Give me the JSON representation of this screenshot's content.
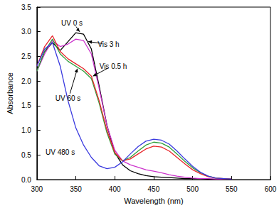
{
  "chart_data": {
    "type": "line",
    "x_label": "Wavelength (nm)",
    "y_label": "Absorbance",
    "x": [
      300,
      310,
      320,
      330,
      340,
      350,
      360,
      370,
      380,
      390,
      400,
      410,
      420,
      430,
      440,
      450,
      460,
      470,
      480,
      490,
      500,
      510,
      520,
      530,
      540,
      550
    ],
    "series": [
      {
        "name": "UV 0 s",
        "color": "#000000",
        "values": [
          2.2,
          2.6,
          2.78,
          2.62,
          2.8,
          2.98,
          2.95,
          2.65,
          1.9,
          1.1,
          0.55,
          0.3,
          0.18,
          0.12,
          0.08,
          0.06,
          0.05,
          0.04,
          0.03,
          0.02,
          0.02,
          0.02,
          0.01,
          0.01,
          0.01,
          0.01
        ],
        "annotation": {
          "x": 345,
          "y": 3.18,
          "arrow_to": [
            355,
            3.0
          ]
        }
      },
      {
        "name": "Vis 3 h",
        "color": "#cc33cc",
        "values": [
          2.2,
          2.55,
          2.82,
          2.7,
          2.75,
          2.85,
          2.82,
          2.55,
          1.85,
          1.1,
          0.6,
          0.38,
          0.3,
          0.25,
          0.2,
          0.17,
          0.14,
          0.1,
          0.07,
          0.05,
          0.03,
          0.02,
          0.02,
          0.01,
          0.01,
          0.01
        ],
        "annotation": {
          "x": 392,
          "y": 2.75,
          "arrow_to": [
            366,
            2.8
          ]
        }
      },
      {
        "name": "Vis 0.5 h",
        "color": "#2e9e3a",
        "values": [
          2.2,
          2.6,
          2.85,
          2.55,
          2.4,
          2.3,
          2.2,
          2.05,
          1.55,
          0.95,
          0.52,
          0.38,
          0.45,
          0.58,
          0.7,
          0.76,
          0.74,
          0.66,
          0.52,
          0.37,
          0.24,
          0.14,
          0.07,
          0.03,
          0.02,
          0.01
        ],
        "annotation": {
          "x": 398,
          "y": 2.3,
          "arrow_to": [
            372,
            2.1
          ]
        }
      },
      {
        "name": "UV 60 s",
        "color": "#e8262b",
        "values": [
          2.3,
          2.7,
          2.92,
          2.6,
          2.45,
          2.35,
          2.25,
          2.1,
          1.6,
          1.0,
          0.55,
          0.38,
          0.42,
          0.52,
          0.62,
          0.68,
          0.66,
          0.58,
          0.45,
          0.32,
          0.2,
          0.12,
          0.06,
          0.03,
          0.02,
          0.01
        ],
        "annotation": {
          "x": 340,
          "y": 1.65,
          "arrow_to": [
            352,
            2.25
          ]
        }
      },
      {
        "name": "UV 480 s",
        "color": "#3a3adf",
        "values": [
          2.3,
          2.65,
          2.78,
          2.3,
          1.6,
          1.05,
          0.7,
          0.45,
          0.28,
          0.22,
          0.25,
          0.36,
          0.52,
          0.67,
          0.78,
          0.82,
          0.8,
          0.72,
          0.58,
          0.42,
          0.27,
          0.15,
          0.07,
          0.03,
          0.02,
          0.01
        ],
        "annotation": {
          "x": 330,
          "y": 0.55
        }
      }
    ],
    "xlim": [
      300,
      600
    ],
    "xticks": [
      300,
      350,
      400,
      450,
      500,
      550,
      600
    ],
    "ylim": [
      0,
      3.5
    ],
    "yticks": [
      {
        "value": 0,
        "label": "0.0"
      },
      0.5,
      {
        "value": 1,
        "label": "1.0"
      },
      1.5,
      {
        "value": 2,
        "label": "2.0"
      },
      2.5,
      {
        "value": 3,
        "label": "3.0"
      },
      3.5
    ],
    "grid": false
  }
}
